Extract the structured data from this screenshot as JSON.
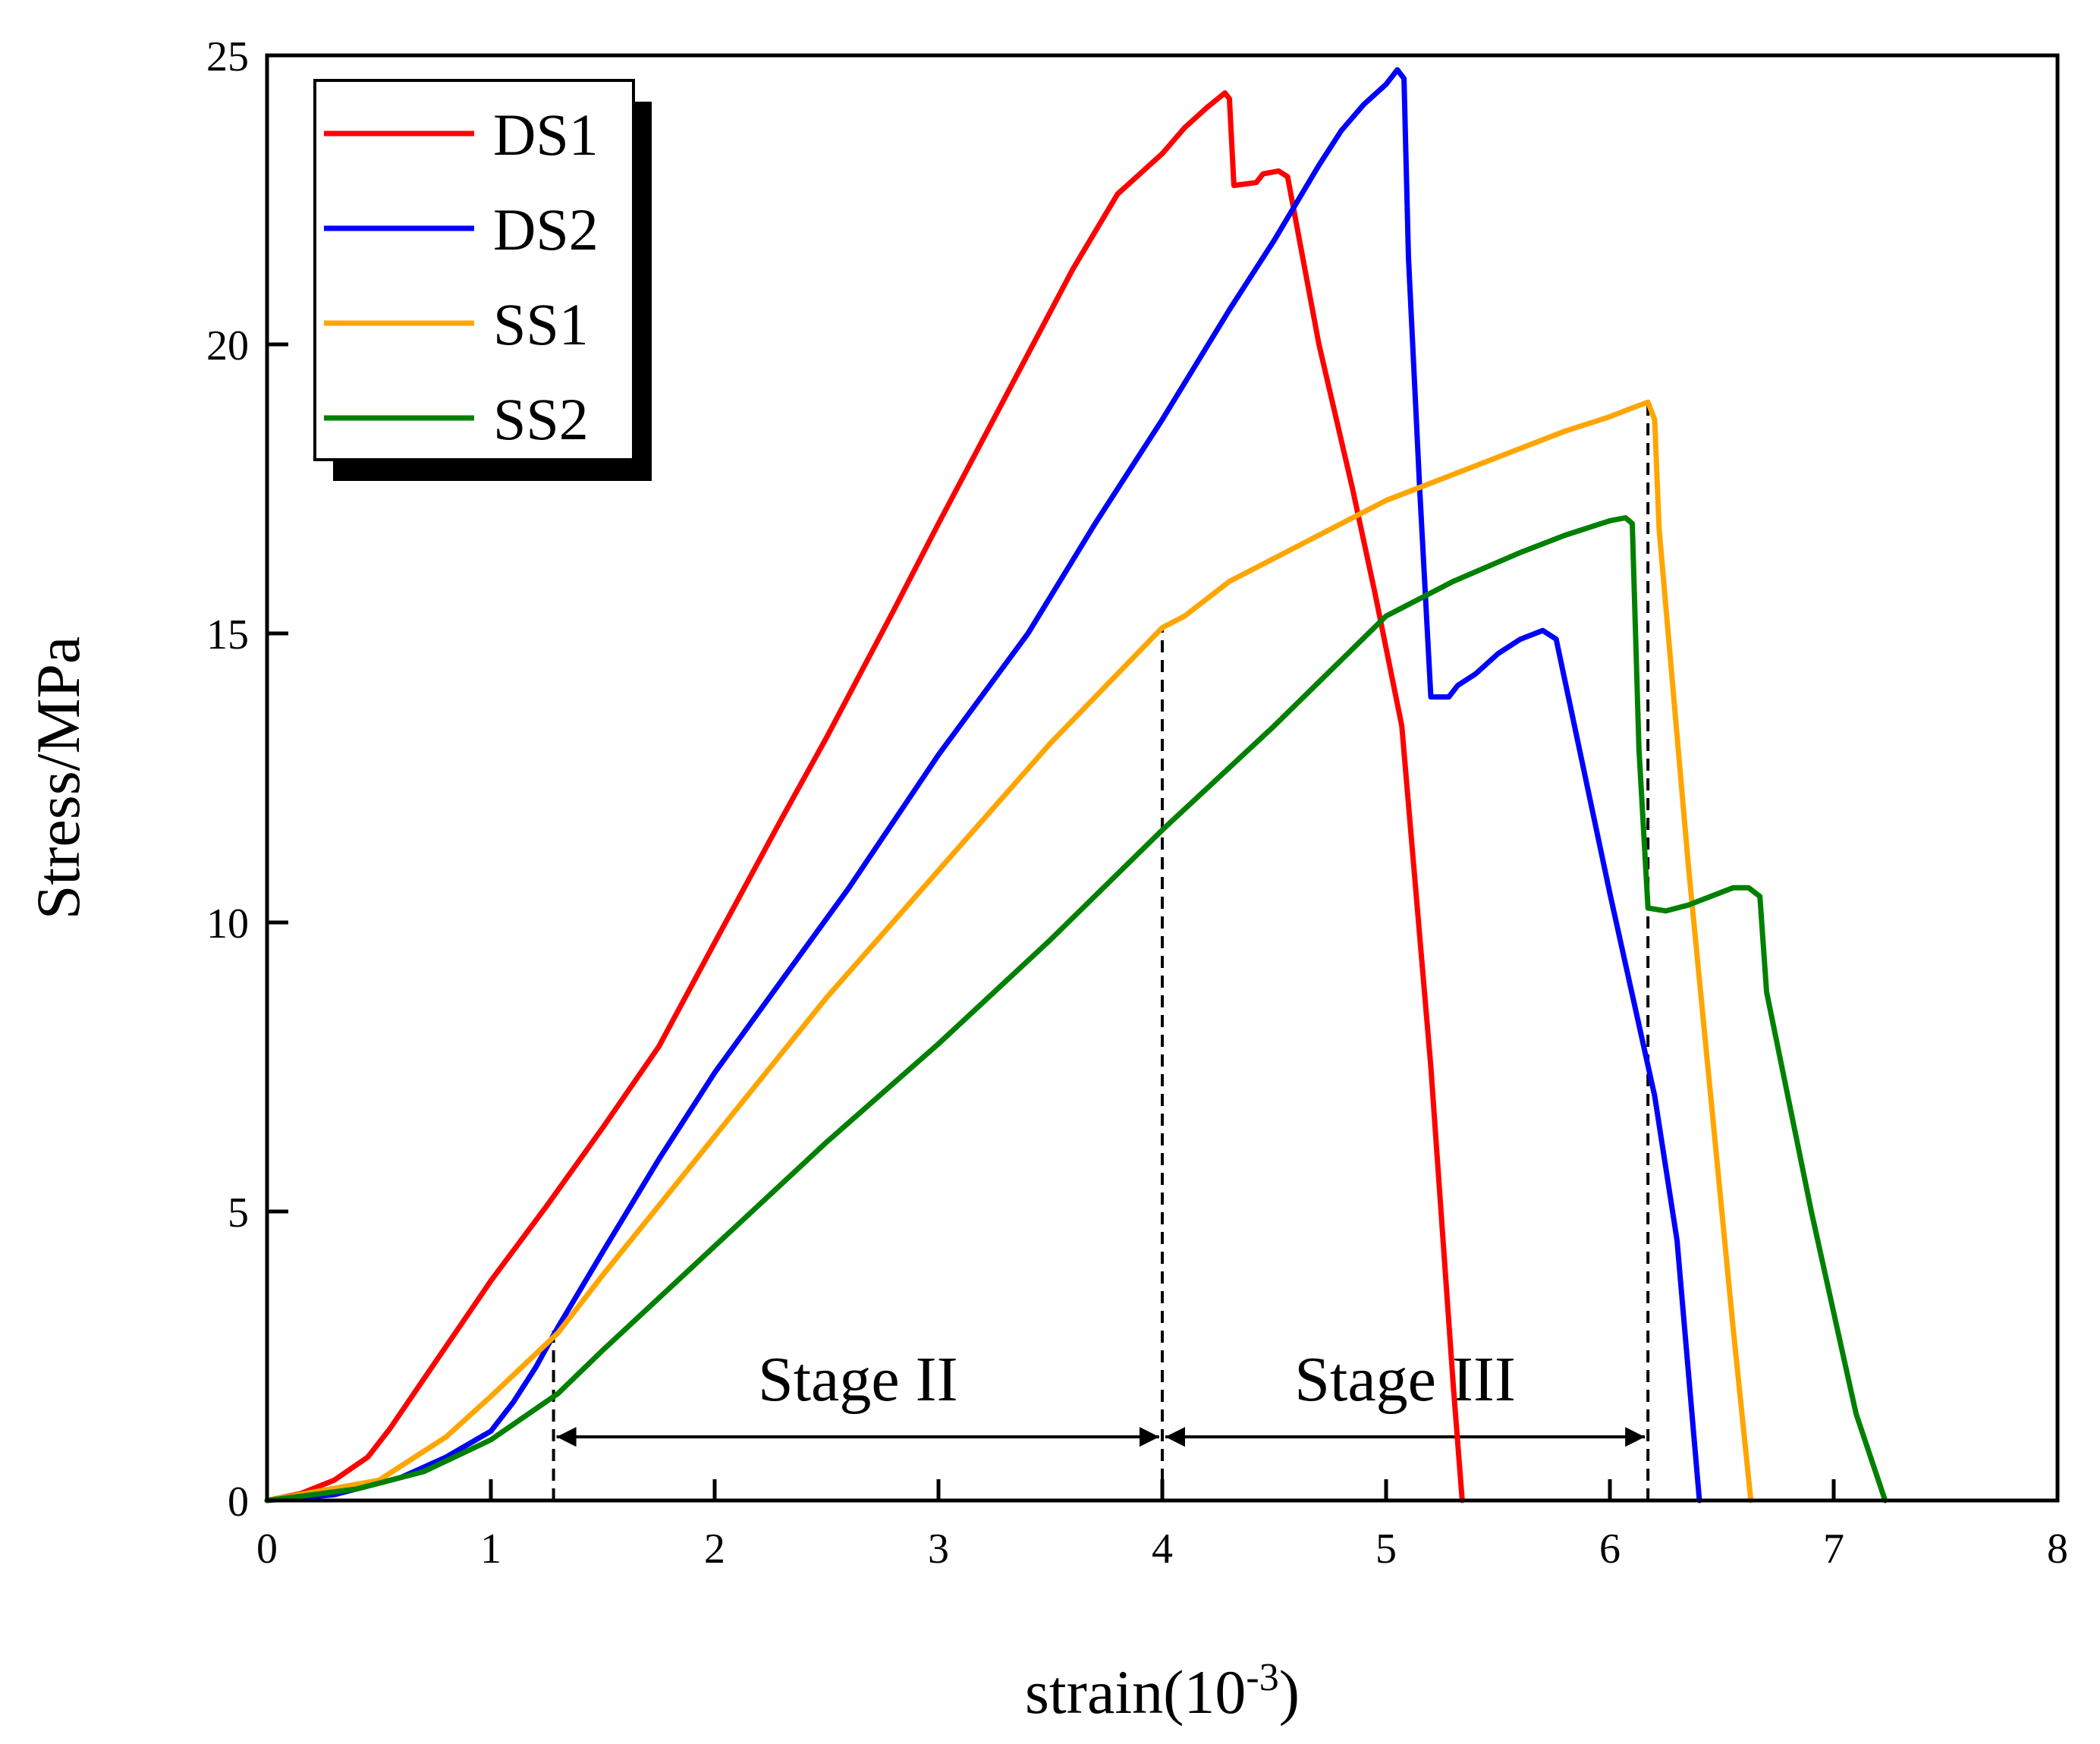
{
  "chart_data": {
    "type": "line",
    "title": "",
    "xlabel": "strain(10",
    "xlabel_sup": "-3",
    "xlabel_close": ")",
    "ylabel": "Stress/MPa",
    "xlim": [
      0,
      8
    ],
    "ylim": [
      0,
      25
    ],
    "xticks": [
      0,
      1,
      2,
      3,
      4,
      5,
      6,
      7,
      8
    ],
    "yticks": [
      0,
      5,
      10,
      15,
      20,
      25
    ],
    "grid": false,
    "legend_position": "top-left",
    "series": [
      {
        "name": "DS1",
        "color": "#ff0000",
        "points": [
          [
            0,
            0
          ],
          [
            0.15,
            0.12
          ],
          [
            0.3,
            0.35
          ],
          [
            0.45,
            0.75
          ],
          [
            0.55,
            1.25
          ],
          [
            0.7,
            2.1
          ],
          [
            0.85,
            2.95
          ],
          [
            1.0,
            3.8
          ],
          [
            1.25,
            5.1
          ],
          [
            1.5,
            6.45
          ],
          [
            1.75,
            7.85
          ],
          [
            2.0,
            9.65
          ],
          [
            2.3,
            11.8
          ],
          [
            2.5,
            13.2
          ],
          [
            2.8,
            15.4
          ],
          [
            3.0,
            16.9
          ],
          [
            3.3,
            19.1
          ],
          [
            3.6,
            21.3
          ],
          [
            3.8,
            22.6
          ],
          [
            4.0,
            23.3
          ],
          [
            4.1,
            23.75
          ],
          [
            4.2,
            24.1
          ],
          [
            4.28,
            24.35
          ],
          [
            4.3,
            24.25
          ],
          [
            4.32,
            22.75
          ],
          [
            4.42,
            22.8
          ],
          [
            4.45,
            22.95
          ],
          [
            4.52,
            23.0
          ],
          [
            4.56,
            22.9
          ],
          [
            4.7,
            20.0
          ],
          [
            4.85,
            17.5
          ],
          [
            4.95,
            15.7
          ],
          [
            5.07,
            13.4
          ],
          [
            5.2,
            7.5
          ],
          [
            5.3,
            2.0
          ],
          [
            5.34,
            0
          ]
        ]
      },
      {
        "name": "DS2",
        "color": "#0000ff",
        "points": [
          [
            0,
            0
          ],
          [
            0.3,
            0.1
          ],
          [
            0.6,
            0.4
          ],
          [
            0.8,
            0.75
          ],
          [
            1.0,
            1.2
          ],
          [
            1.1,
            1.7
          ],
          [
            1.2,
            2.3
          ],
          [
            1.3,
            3.0
          ],
          [
            1.5,
            4.3
          ],
          [
            1.75,
            5.9
          ],
          [
            2.0,
            7.4
          ],
          [
            2.3,
            9.0
          ],
          [
            2.6,
            10.6
          ],
          [
            3.0,
            12.9
          ],
          [
            3.4,
            15.0
          ],
          [
            3.7,
            16.9
          ],
          [
            4.0,
            18.7
          ],
          [
            4.3,
            20.6
          ],
          [
            4.5,
            21.8
          ],
          [
            4.7,
            23.1
          ],
          [
            4.8,
            23.7
          ],
          [
            4.9,
            24.15
          ],
          [
            5.0,
            24.5
          ],
          [
            5.05,
            24.75
          ],
          [
            5.08,
            24.6
          ],
          [
            5.1,
            21.5
          ],
          [
            5.15,
            17.5
          ],
          [
            5.2,
            13.9
          ],
          [
            5.28,
            13.9
          ],
          [
            5.32,
            14.1
          ],
          [
            5.4,
            14.3
          ],
          [
            5.5,
            14.65
          ],
          [
            5.6,
            14.9
          ],
          [
            5.7,
            15.05
          ],
          [
            5.76,
            14.9
          ],
          [
            5.82,
            13.8
          ],
          [
            6.0,
            10.5
          ],
          [
            6.2,
            7.0
          ],
          [
            6.3,
            4.5
          ],
          [
            6.4,
            0
          ]
        ]
      },
      {
        "name": "SS1",
        "color": "#ffa500",
        "points": [
          [
            0,
            0
          ],
          [
            0.5,
            0.35
          ],
          [
            0.8,
            1.1
          ],
          [
            1.0,
            1.8
          ],
          [
            1.3,
            2.9
          ],
          [
            1.5,
            3.9
          ],
          [
            1.75,
            5.1
          ],
          [
            2.0,
            6.3
          ],
          [
            2.5,
            8.7
          ],
          [
            3.0,
            10.9
          ],
          [
            3.5,
            13.1
          ],
          [
            4.0,
            15.1
          ],
          [
            4.1,
            15.3
          ],
          [
            4.3,
            15.9
          ],
          [
            4.6,
            16.5
          ],
          [
            5.0,
            17.3
          ],
          [
            5.4,
            17.9
          ],
          [
            5.8,
            18.5
          ],
          [
            6.0,
            18.75
          ],
          [
            6.1,
            18.9
          ],
          [
            6.17,
            19.0
          ],
          [
            6.2,
            18.7
          ],
          [
            6.22,
            16.8
          ],
          [
            6.35,
            11.0
          ],
          [
            6.45,
            7.0
          ],
          [
            6.55,
            3.0
          ],
          [
            6.63,
            0
          ]
        ]
      },
      {
        "name": "SS2",
        "color": "#008000",
        "points": [
          [
            0,
            0
          ],
          [
            0.4,
            0.2
          ],
          [
            0.7,
            0.5
          ],
          [
            1.0,
            1.05
          ],
          [
            1.3,
            1.85
          ],
          [
            1.5,
            2.6
          ],
          [
            1.75,
            3.5
          ],
          [
            2.0,
            4.4
          ],
          [
            2.5,
            6.2
          ],
          [
            3.0,
            7.9
          ],
          [
            3.5,
            9.7
          ],
          [
            4.0,
            11.6
          ],
          [
            4.5,
            13.4
          ],
          [
            5.0,
            15.3
          ],
          [
            5.3,
            15.9
          ],
          [
            5.6,
            16.4
          ],
          [
            5.8,
            16.7
          ],
          [
            6.0,
            16.95
          ],
          [
            6.07,
            17.0
          ],
          [
            6.1,
            16.9
          ],
          [
            6.13,
            13.0
          ],
          [
            6.17,
            10.25
          ],
          [
            6.25,
            10.2
          ],
          [
            6.35,
            10.3
          ],
          [
            6.45,
            10.45
          ],
          [
            6.55,
            10.6
          ],
          [
            6.62,
            10.6
          ],
          [
            6.67,
            10.45
          ],
          [
            6.7,
            8.8
          ],
          [
            6.9,
            5.0
          ],
          [
            7.1,
            1.5
          ],
          [
            7.23,
            0
          ]
        ]
      }
    ],
    "annotations": [
      {
        "type": "vline",
        "x": 1.28,
        "y_top": 3.0
      },
      {
        "type": "vline",
        "x": 4.0,
        "y_top": 15.1
      },
      {
        "type": "vline",
        "x": 6.17,
        "y_top": 19.0
      },
      {
        "type": "arrow",
        "x_from": 1.28,
        "x_to": 4.0,
        "y": 1.1,
        "label": "Stage II"
      },
      {
        "type": "arrow",
        "x_from": 4.0,
        "x_to": 6.17,
        "y": 1.1,
        "label": "Stage III"
      }
    ]
  }
}
